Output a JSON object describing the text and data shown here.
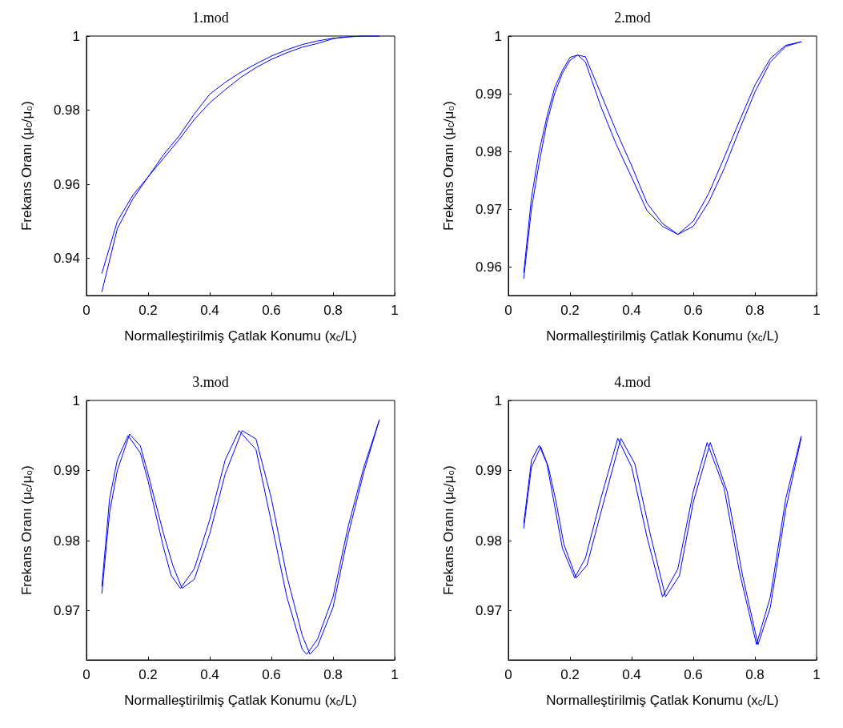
{
  "chart_data": [
    {
      "type": "line",
      "title": "1.mod",
      "xlabel": "Normalleştirilmiş Çatlak Konumu (x$_{c}$/L)",
      "ylabel": "Frekans Oranı (μ$_{c}$/μ₀)",
      "xlim": [
        0,
        1
      ],
      "xticks": [
        0,
        0.2,
        0.4,
        0.6,
        0.8,
        1
      ],
      "ylim": [
        0.93,
        1
      ],
      "yticks": [
        0.94,
        0.96,
        0.98,
        1
      ],
      "line_style": "solid",
      "series": [
        {
          "color": "#0000ff",
          "x": [
            0.05,
            0.1,
            0.15,
            0.2,
            0.25,
            0.3,
            0.35,
            0.4,
            0.45,
            0.5,
            0.55,
            0.6,
            0.65,
            0.7,
            0.75,
            0.8,
            0.85,
            0.9,
            0.95
          ],
          "values": [
            0.931,
            0.948,
            0.956,
            0.962,
            0.968,
            0.973,
            0.979,
            0.9843,
            0.9875,
            0.9902,
            0.9925,
            0.9946,
            0.9963,
            0.9977,
            0.9987,
            0.9994,
            0.9998,
            1.0,
            1.0
          ]
        },
        {
          "color": "#0000ff",
          "x": [
            0.05,
            0.1,
            0.15,
            0.2,
            0.25,
            0.3,
            0.35,
            0.4,
            0.45,
            0.5,
            0.55,
            0.6,
            0.65,
            0.7,
            0.75,
            0.8,
            0.85,
            0.9,
            0.95
          ],
          "values": [
            0.936,
            0.95,
            0.957,
            0.962,
            0.967,
            0.972,
            0.9775,
            0.982,
            0.9855,
            0.9888,
            0.9915,
            0.9937,
            0.9955,
            0.997,
            0.998,
            0.9993,
            0.9998,
            1.0,
            1.0
          ]
        }
      ]
    },
    {
      "type": "line",
      "title": "2.mod",
      "xlabel": "Normalleştirilmiş Çatlak Konumu (x$_{c}$/L)",
      "ylabel": "Frekans Oranı (μ$_{c}$/μ₀)",
      "xlim": [
        0,
        1
      ],
      "xticks": [
        0,
        0.2,
        0.4,
        0.6,
        0.8,
        1
      ],
      "ylim": [
        0.955,
        1
      ],
      "yticks": [
        0.96,
        0.97,
        0.98,
        0.99,
        1
      ],
      "line_style": "solid",
      "series": [
        {
          "color": "#0000ff",
          "x": [
            0.05,
            0.075,
            0.1,
            0.125,
            0.15,
            0.175,
            0.2,
            0.225,
            0.25,
            0.3,
            0.35,
            0.4,
            0.45,
            0.5,
            0.55,
            0.6,
            0.65,
            0.7,
            0.75,
            0.8,
            0.85,
            0.9,
            0.95
          ],
          "values": [
            0.959,
            0.972,
            0.98,
            0.986,
            0.991,
            0.994,
            0.9963,
            0.9967,
            0.9955,
            0.9878,
            0.9812,
            0.9755,
            0.9697,
            0.967,
            0.9656,
            0.9679,
            0.9727,
            0.9789,
            0.9853,
            0.9915,
            0.9961,
            0.9984,
            0.999
          ]
        },
        {
          "color": "#0000ff",
          "x": [
            0.05,
            0.075,
            0.1,
            0.125,
            0.15,
            0.175,
            0.2,
            0.225,
            0.25,
            0.3,
            0.35,
            0.4,
            0.45,
            0.5,
            0.55,
            0.6,
            0.65,
            0.7,
            0.75,
            0.8,
            0.85,
            0.9,
            0.95
          ],
          "values": [
            0.958,
            0.97,
            0.978,
            0.985,
            0.99,
            0.9935,
            0.9958,
            0.9967,
            0.9964,
            0.99,
            0.9835,
            0.9775,
            0.971,
            0.9675,
            0.9656,
            0.967,
            0.9712,
            0.977,
            0.9838,
            0.9903,
            0.9955,
            0.9982,
            0.999
          ]
        }
      ]
    },
    {
      "type": "line",
      "title": "3.mod",
      "xlabel": "Normalleştirilmiş Çatlak Konumu (x$_{c}$/L)",
      "ylabel": "Frekans Oranı (μ$_{c}$/μ₀)",
      "xlim": [
        0,
        1
      ],
      "xticks": [
        0,
        0.2,
        0.4,
        0.6,
        0.8,
        1
      ],
      "ylim": [
        0.963,
        1
      ],
      "yticks": [
        0.97,
        0.98,
        0.99,
        1
      ],
      "line_style": "solid",
      "series": [
        {
          "color": "#0000ff",
          "x": [
            0.05,
            0.075,
            0.1,
            0.135,
            0.175,
            0.2,
            0.25,
            0.275,
            0.305,
            0.35,
            0.4,
            0.45,
            0.495,
            0.55,
            0.6,
            0.65,
            0.7,
            0.715,
            0.75,
            0.8,
            0.85,
            0.9,
            0.95
          ],
          "values": [
            0.9735,
            0.986,
            0.9915,
            0.995,
            0.9925,
            0.9885,
            0.979,
            0.975,
            0.9732,
            0.976,
            0.983,
            0.9915,
            0.9957,
            0.993,
            0.9826,
            0.972,
            0.9645,
            0.9638,
            0.966,
            0.972,
            0.9822,
            0.9905,
            0.9972
          ]
        },
        {
          "color": "#0000ff",
          "x": [
            0.05,
            0.075,
            0.1,
            0.14,
            0.175,
            0.2,
            0.25,
            0.28,
            0.31,
            0.35,
            0.4,
            0.45,
            0.505,
            0.55,
            0.6,
            0.65,
            0.7,
            0.725,
            0.75,
            0.8,
            0.85,
            0.9,
            0.95
          ],
          "values": [
            0.9725,
            0.984,
            0.99,
            0.9952,
            0.9935,
            0.9895,
            0.981,
            0.9765,
            0.9732,
            0.9745,
            0.981,
            0.9895,
            0.9957,
            0.9945,
            0.986,
            0.975,
            0.9665,
            0.9638,
            0.965,
            0.9705,
            0.981,
            0.9898,
            0.9972
          ]
        }
      ]
    },
    {
      "type": "line",
      "title": "4.mod",
      "xlabel": "Normalleştirilmiş Çatlak Konumu (x$_{c}$/L)",
      "ylabel": "Frekans Oranı (μ$_{c}$/μ₀)",
      "xlim": [
        0,
        1
      ],
      "xticks": [
        0,
        0.2,
        0.4,
        0.6,
        0.8,
        1
      ],
      "ylim": [
        0.963,
        1
      ],
      "yticks": [
        0.97,
        0.98,
        0.99,
        1
      ],
      "line_style": "solid",
      "series": [
        {
          "color": "#0000ff",
          "x": [
            0.05,
            0.075,
            0.1,
            0.125,
            0.15,
            0.175,
            0.215,
            0.25,
            0.3,
            0.355,
            0.4,
            0.45,
            0.5,
            0.55,
            0.6,
            0.645,
            0.7,
            0.75,
            0.805,
            0.85,
            0.9,
            0.95
          ],
          "values": [
            0.9825,
            0.9915,
            0.9936,
            0.991,
            0.985,
            0.979,
            0.9747,
            0.9775,
            0.986,
            0.9946,
            0.9905,
            0.9805,
            0.972,
            0.976,
            0.987,
            0.994,
            0.9875,
            0.9755,
            0.9652,
            0.972,
            0.986,
            0.9949
          ]
        },
        {
          "color": "#0000ff",
          "x": [
            0.05,
            0.075,
            0.105,
            0.13,
            0.155,
            0.18,
            0.22,
            0.255,
            0.3,
            0.365,
            0.41,
            0.46,
            0.51,
            0.555,
            0.6,
            0.655,
            0.71,
            0.76,
            0.81,
            0.85,
            0.9,
            0.95
          ],
          "values": [
            0.9818,
            0.9905,
            0.9934,
            0.9905,
            0.9855,
            0.9795,
            0.9747,
            0.9765,
            0.984,
            0.9946,
            0.991,
            0.981,
            0.972,
            0.975,
            0.9855,
            0.994,
            0.987,
            0.975,
            0.9652,
            0.9705,
            0.9845,
            0.9946
          ]
        }
      ]
    }
  ]
}
